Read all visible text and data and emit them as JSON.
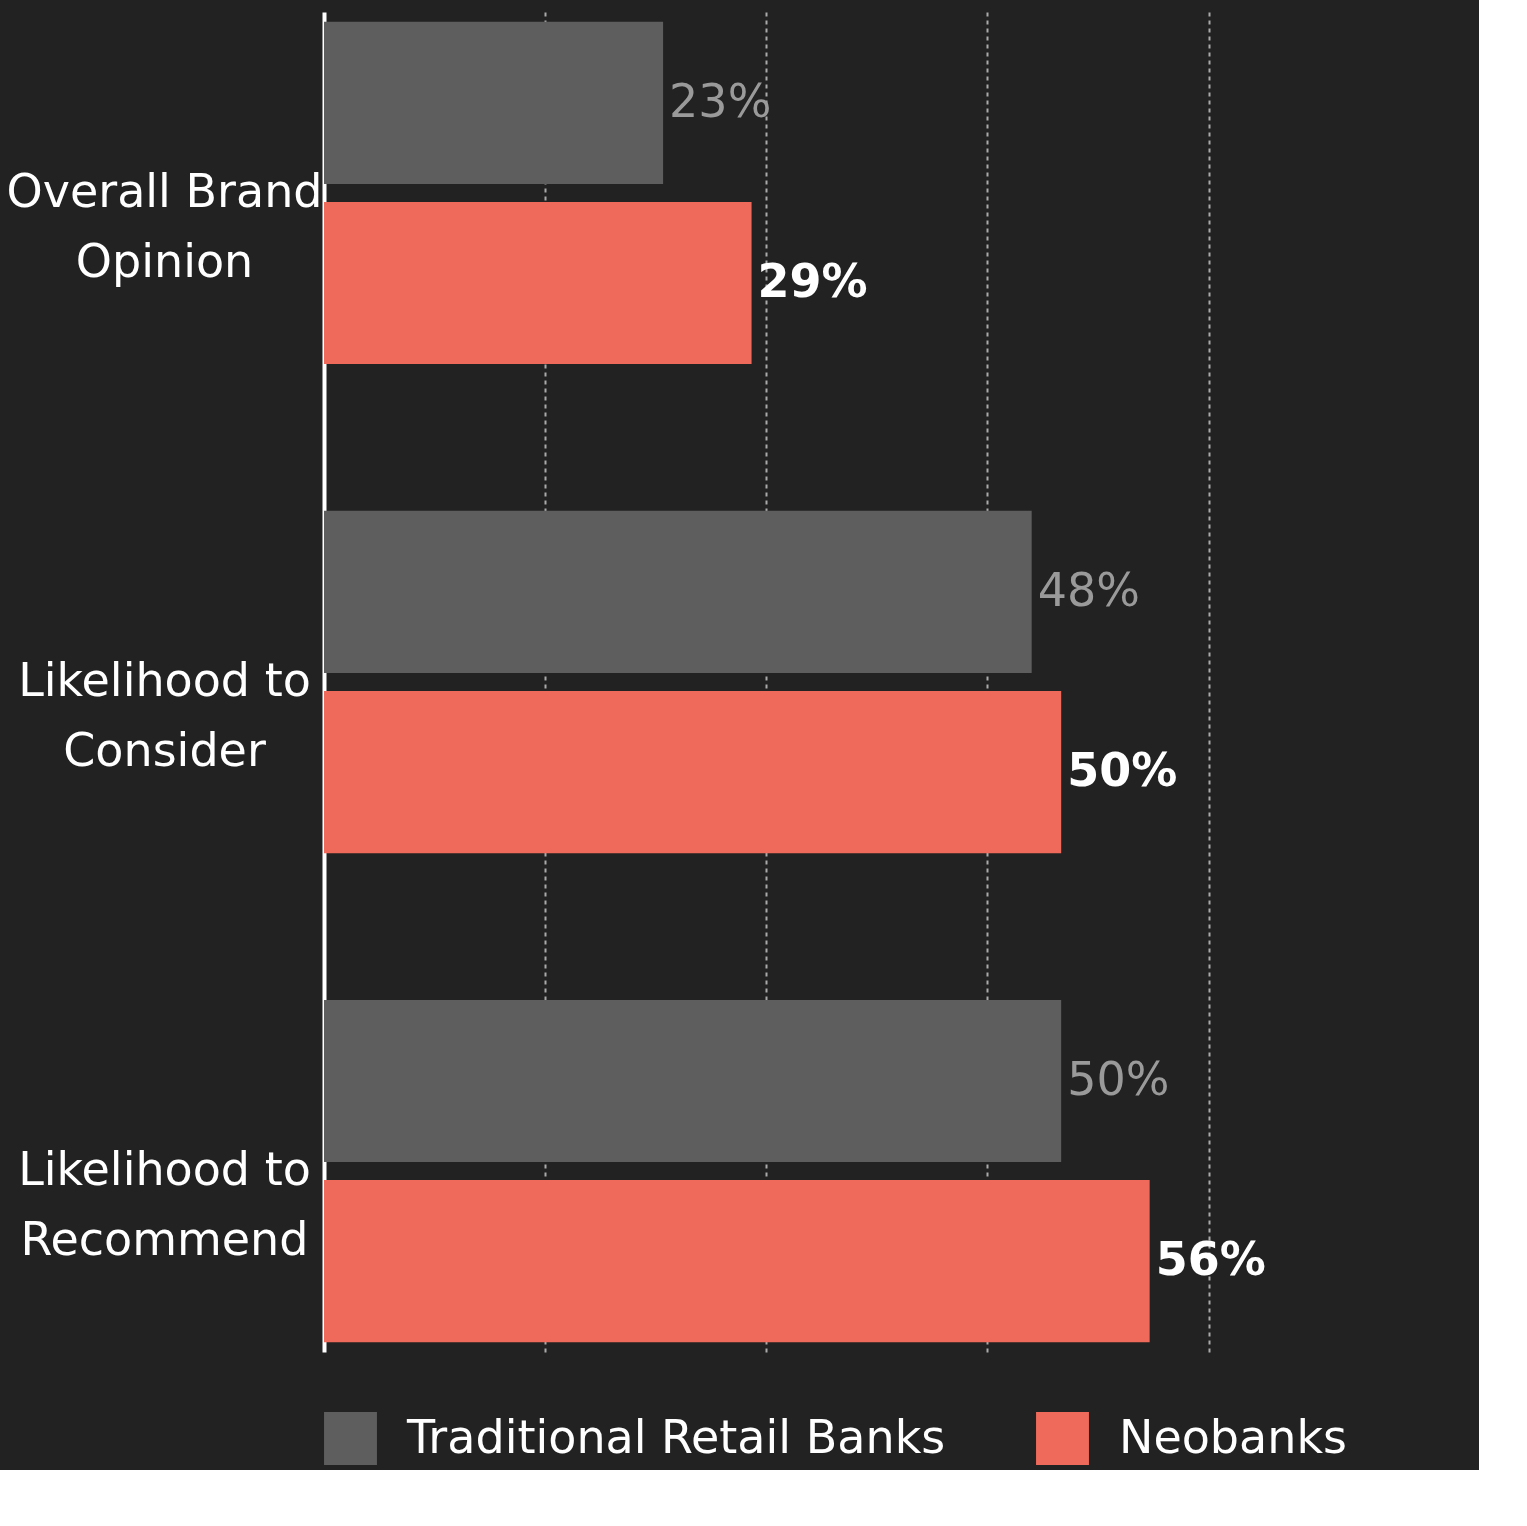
{
  "chart_data": {
    "type": "bar",
    "orientation": "horizontal",
    "categories": [
      "Overall Brand Opinion",
      "Likelihood to Consider",
      "Likelihood to Recommend"
    ],
    "series": [
      {
        "name": "Traditional Retail Banks",
        "color": "#5e5e5e",
        "values": [
          23,
          48,
          50
        ],
        "value_labels": [
          "23%",
          "48%",
          "50%"
        ]
      },
      {
        "name": "Neobanks",
        "color": "#ef6a5a",
        "values": [
          29,
          50,
          56
        ],
        "value_labels": [
          "29%",
          "50%",
          "56%"
        ]
      }
    ],
    "xlim": [
      0,
      78
    ],
    "xticks": [
      {
        "value": 15,
        "label": null
      },
      {
        "value": 30,
        "label": null
      },
      {
        "value": 45,
        "label": null
      },
      {
        "value": 60,
        "label": null
      }
    ],
    "grid": "x",
    "legend": "bottom",
    "tick_labels": "y"
  }
}
